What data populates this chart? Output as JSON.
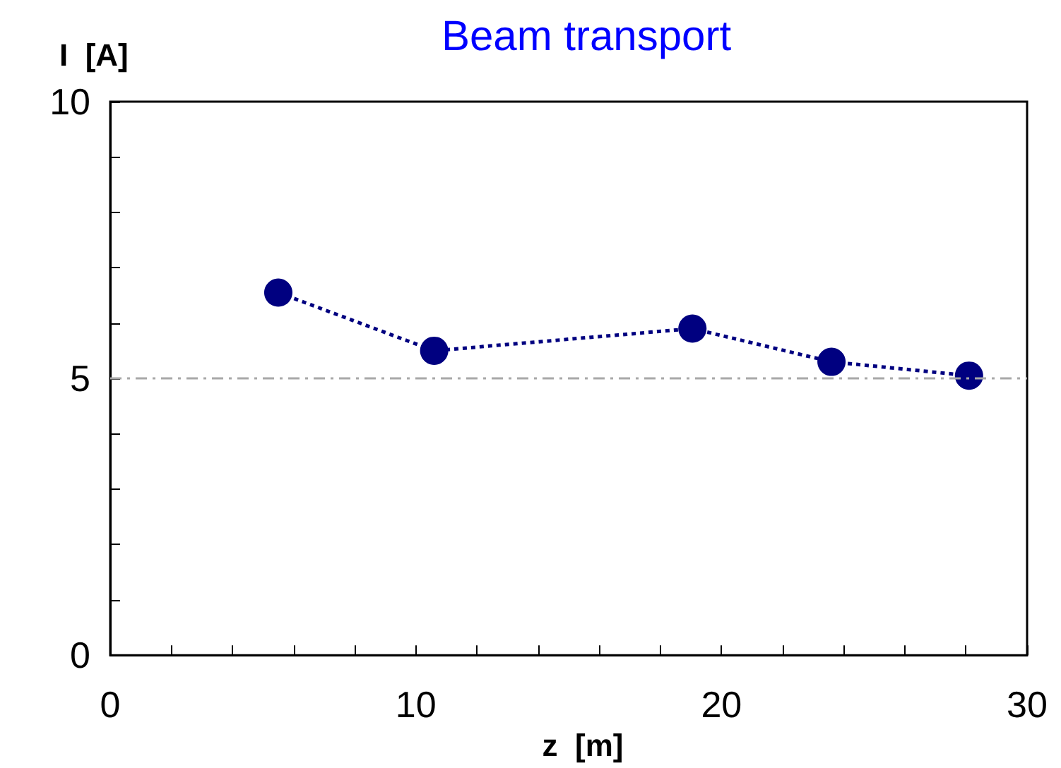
{
  "chart_data": {
    "type": "line",
    "title": "Beam transport",
    "xlabel": "z  [m]",
    "ylabel": "I  [A]",
    "x": [
      5.5,
      10.6,
      19.05,
      23.6,
      28.1
    ],
    "series": [
      {
        "color": "#000080",
        "values": [
          6.55,
          5.5,
          5.9,
          5.3,
          5.05
        ]
      }
    ],
    "xlim": [
      0,
      30
    ],
    "ylim": [
      0,
      10
    ],
    "xticks": [
      0,
      {
        "value": 2,
        "label": null
      },
      {
        "value": 4,
        "label": null
      },
      {
        "value": 6,
        "label": null
      },
      {
        "value": 8,
        "label": null
      },
      10,
      {
        "value": 12,
        "label": null
      },
      {
        "value": 14,
        "label": null
      },
      {
        "value": 16,
        "label": null
      },
      {
        "value": 18,
        "label": null
      },
      20,
      {
        "value": 22,
        "label": null
      },
      {
        "value": 24,
        "label": null
      },
      {
        "value": 26,
        "label": null
      },
      {
        "value": 28,
        "label": null
      },
      30
    ],
    "yticks": [
      0,
      {
        "value": 1,
        "label": null
      },
      {
        "value": 2,
        "label": null
      },
      {
        "value": 3,
        "label": null
      },
      {
        "value": 4,
        "label": null
      },
      5,
      {
        "value": 6,
        "label": null
      },
      {
        "value": 7,
        "label": null
      },
      {
        "value": 8,
        "label": null
      },
      {
        "value": 9,
        "label": null
      },
      10
    ],
    "ref_lines": [
      {
        "axis": "y",
        "value": 5,
        "label": null,
        "color": "#a8a8a8",
        "line_style": "dashed"
      }
    ],
    "grid": false,
    "marker": "circle",
    "line_style": "dotted"
  }
}
